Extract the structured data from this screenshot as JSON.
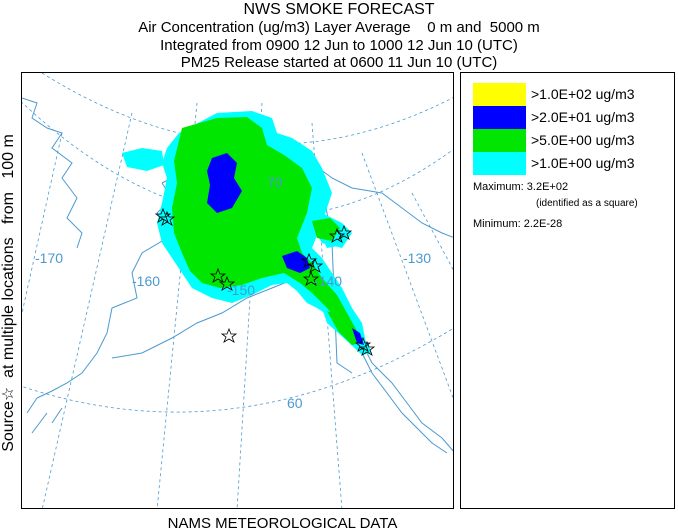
{
  "title": {
    "line1": "NWS SMOKE FORECAST",
    "line2": "Air Concentration (ug/m3) Layer Average    0 m and  5000 m",
    "line3": "Integrated from 0900 12 Jun to 1000 12 Jun 10 (UTC)",
    "line4": "PM25 Release started at 0600 11 Jun 10 (UTC)"
  },
  "side_label": "Source☆  at multiple locations   from   100 m",
  "footer": "NAMS METEOROLOGICAL DATA",
  "legend": {
    "items": [
      {
        "label": ">1.0E+02 ug/m3",
        "color": "#ffff00"
      },
      {
        "label": ">2.0E+01 ug/m3",
        "color": "#0000ff"
      },
      {
        "label": ">5.0E+00 ug/m3",
        "color": "#00e600"
      },
      {
        "label": ">1.0E+00 ug/m3",
        "color": "#00ffff"
      }
    ],
    "maximum": "Maximum: 3.2E+02",
    "max_note": "(identified as a square)",
    "minimum": "Minimum: 2.2E-28"
  },
  "map": {
    "grid_labels": {
      "lat70": "70",
      "lat60": "60",
      "lon170": "-170",
      "lon160": "-160",
      "lon150": "-150",
      "lon140": "-140",
      "lon130": "-130"
    },
    "grid_color": "#4a9ad0",
    "coast_color": "#4a9ad0",
    "source_marker": "star-icon"
  }
}
